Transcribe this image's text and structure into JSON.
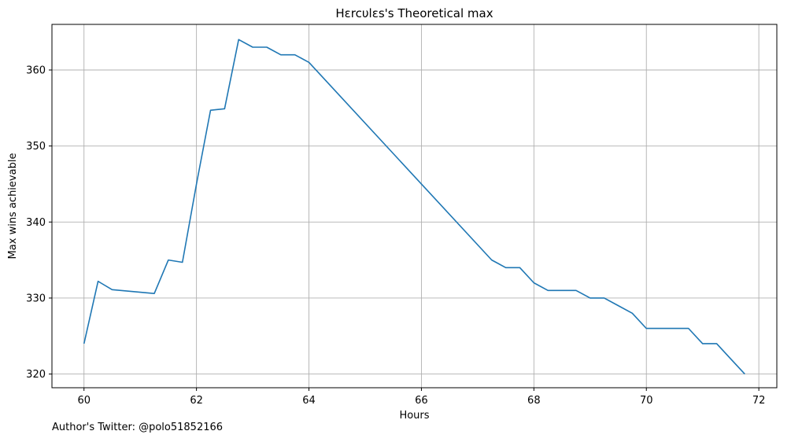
{
  "chart_data": {
    "type": "line",
    "title": "Hεrcυlεs's Theoretical max",
    "xlabel": "Hours",
    "ylabel": "Max wins achievable",
    "xlim": [
      59.43,
      72.32
    ],
    "ylim": [
      318.2,
      366.0
    ],
    "xticks": [
      60,
      62,
      64,
      66,
      68,
      70,
      72
    ],
    "yticks": [
      320,
      330,
      340,
      350,
      360
    ],
    "grid": true,
    "series": [
      {
        "color": "#1f77b4",
        "x": [
          60.0,
          60.25,
          60.5,
          61.25,
          61.5,
          61.75,
          62.0,
          62.25,
          62.5,
          62.75,
          63.0,
          63.25,
          63.5,
          63.75,
          64.0,
          67.25,
          67.5,
          67.75,
          68.0,
          68.25,
          68.5,
          68.75,
          69.0,
          69.25,
          69.5,
          69.75,
          70.0,
          70.25,
          70.5,
          70.75,
          71.0,
          71.25,
          71.5,
          71.75
        ],
        "y": [
          324,
          332.2,
          331.1,
          330.6,
          335,
          334.7,
          345,
          354.7,
          354.9,
          364,
          363,
          363,
          362,
          362,
          361,
          335,
          334,
          334,
          332,
          331,
          331,
          331,
          330,
          330,
          329,
          328,
          326,
          326,
          326,
          326,
          324,
          324,
          322,
          320
        ]
      }
    ]
  },
  "footer": {
    "text": "Author's Twitter: @polo51852166"
  }
}
